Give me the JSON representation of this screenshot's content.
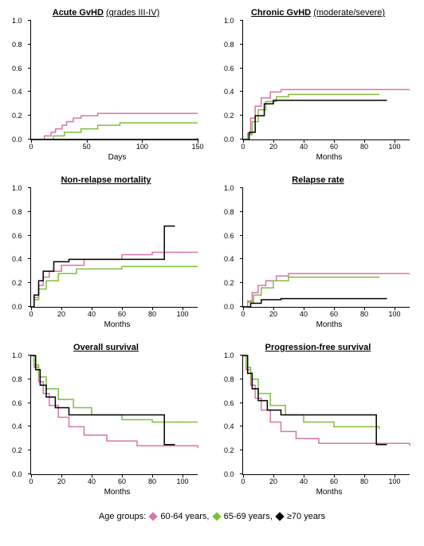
{
  "legend": {
    "prefix": "Age groups:",
    "items": [
      {
        "label": "60-64 years,",
        "color": "#d974a8"
      },
      {
        "label": "65-69 years,",
        "color": "#7fbf3f"
      },
      {
        "label": "≥70 years",
        "color": "#000000"
      }
    ]
  },
  "panels": [
    {
      "title_main": "Acute GvHD",
      "title_sub": "(grades III-IV)",
      "xlabel": "Days",
      "ylim": [
        0,
        1
      ],
      "ytick_step": 0.2,
      "xlim": [
        0,
        150
      ],
      "xtick_step": 50,
      "series": [
        {
          "color": "#d974a8",
          "pts": [
            [
              0,
              0
            ],
            [
              10,
              0
            ],
            [
              12,
              0.03
            ],
            [
              18,
              0.06
            ],
            [
              22,
              0.09
            ],
            [
              28,
              0.12
            ],
            [
              32,
              0.15
            ],
            [
              38,
              0.18
            ],
            [
              45,
              0.2
            ],
            [
              60,
              0.22
            ],
            [
              150,
              0.22
            ]
          ]
        },
        {
          "color": "#7fbf3f",
          "pts": [
            [
              0,
              0
            ],
            [
              15,
              0
            ],
            [
              20,
              0.03
            ],
            [
              30,
              0.06
            ],
            [
              45,
              0.09
            ],
            [
              60,
              0.12
            ],
            [
              80,
              0.14
            ],
            [
              150,
              0.14
            ]
          ]
        },
        {
          "color": "#000000",
          "pts": [
            [
              0,
              0
            ],
            [
              150,
              0.01
            ]
          ]
        }
      ]
    },
    {
      "title_main": "Chronic GvHD",
      "title_sub": "(moderate/severe)",
      "xlabel": "Months",
      "ylim": [
        0,
        1
      ],
      "ytick_step": 0.2,
      "xlim": [
        0,
        110
      ],
      "xtick_step": 20,
      "series": [
        {
          "color": "#d974a8",
          "pts": [
            [
              0,
              0
            ],
            [
              3,
              0.05
            ],
            [
              5,
              0.18
            ],
            [
              8,
              0.28
            ],
            [
              12,
              0.35
            ],
            [
              18,
              0.4
            ],
            [
              25,
              0.42
            ],
            [
              110,
              0.42
            ]
          ]
        },
        {
          "color": "#7fbf3f",
          "pts": [
            [
              0,
              0
            ],
            [
              3,
              0.04
            ],
            [
              6,
              0.15
            ],
            [
              10,
              0.25
            ],
            [
              15,
              0.32
            ],
            [
              22,
              0.36
            ],
            [
              30,
              0.38
            ],
            [
              90,
              0.38
            ]
          ]
        },
        {
          "color": "#000000",
          "pts": [
            [
              0,
              0
            ],
            [
              4,
              0.06
            ],
            [
              8,
              0.2
            ],
            [
              14,
              0.3
            ],
            [
              20,
              0.33
            ],
            [
              95,
              0.33
            ]
          ]
        }
      ]
    },
    {
      "title_main": "Non-relapse mortality",
      "title_sub": "",
      "xlabel": "Months",
      "ylim": [
        0,
        1
      ],
      "ytick_step": 0.2,
      "xlim": [
        0,
        110
      ],
      "xtick_step": 20,
      "series": [
        {
          "color": "#d974a8",
          "pts": [
            [
              0,
              0
            ],
            [
              2,
              0.08
            ],
            [
              5,
              0.18
            ],
            [
              8,
              0.25
            ],
            [
              12,
              0.3
            ],
            [
              20,
              0.35
            ],
            [
              35,
              0.4
            ],
            [
              60,
              0.44
            ],
            [
              80,
              0.46
            ],
            [
              110,
              0.46
            ]
          ]
        },
        {
          "color": "#7fbf3f",
          "pts": [
            [
              0,
              0
            ],
            [
              2,
              0.06
            ],
            [
              5,
              0.15
            ],
            [
              10,
              0.22
            ],
            [
              18,
              0.28
            ],
            [
              30,
              0.32
            ],
            [
              60,
              0.34
            ],
            [
              110,
              0.34
            ]
          ]
        },
        {
          "color": "#000000",
          "pts": [
            [
              0,
              0
            ],
            [
              2,
              0.1
            ],
            [
              5,
              0.22
            ],
            [
              8,
              0.3
            ],
            [
              15,
              0.38
            ],
            [
              25,
              0.4
            ],
            [
              50,
              0.4
            ],
            [
              85,
              0.4
            ],
            [
              88,
              0.68
            ],
            [
              95,
              0.68
            ]
          ]
        }
      ]
    },
    {
      "title_main": "Relapse rate",
      "title_sub": "",
      "xlabel": "Months",
      "ylim": [
        0,
        1
      ],
      "ytick_step": 0.2,
      "xlim": [
        0,
        110
      ],
      "xtick_step": 20,
      "series": [
        {
          "color": "#d974a8",
          "pts": [
            [
              0,
              0
            ],
            [
              3,
              0.05
            ],
            [
              6,
              0.12
            ],
            [
              10,
              0.18
            ],
            [
              15,
              0.22
            ],
            [
              22,
              0.26
            ],
            [
              30,
              0.28
            ],
            [
              110,
              0.28
            ]
          ]
        },
        {
          "color": "#7fbf3f",
          "pts": [
            [
              0,
              0
            ],
            [
              3,
              0.04
            ],
            [
              7,
              0.1
            ],
            [
              12,
              0.16
            ],
            [
              20,
              0.22
            ],
            [
              30,
              0.25
            ],
            [
              90,
              0.25
            ]
          ]
        },
        {
          "color": "#000000",
          "pts": [
            [
              0,
              0
            ],
            [
              5,
              0.03
            ],
            [
              12,
              0.06
            ],
            [
              25,
              0.07
            ],
            [
              95,
              0.07
            ]
          ]
        }
      ]
    },
    {
      "title_main": "Overall survival",
      "title_sub": "",
      "xlabel": "Months",
      "ylim": [
        0,
        1
      ],
      "ytick_step": 0.2,
      "xlim": [
        0,
        110
      ],
      "xtick_step": 20,
      "series": [
        {
          "color": "#d974a8",
          "pts": [
            [
              0,
              1
            ],
            [
              2,
              0.9
            ],
            [
              5,
              0.78
            ],
            [
              8,
              0.68
            ],
            [
              12,
              0.58
            ],
            [
              18,
              0.48
            ],
            [
              25,
              0.4
            ],
            [
              35,
              0.33
            ],
            [
              50,
              0.28
            ],
            [
              70,
              0.24
            ],
            [
              110,
              0.22
            ]
          ]
        },
        {
          "color": "#7fbf3f",
          "pts": [
            [
              0,
              1
            ],
            [
              2,
              0.92
            ],
            [
              5,
              0.82
            ],
            [
              10,
              0.72
            ],
            [
              18,
              0.63
            ],
            [
              28,
              0.56
            ],
            [
              40,
              0.5
            ],
            [
              60,
              0.46
            ],
            [
              80,
              0.44
            ],
            [
              110,
              0.44
            ]
          ]
        },
        {
          "color": "#000000",
          "pts": [
            [
              0,
              1
            ],
            [
              3,
              0.88
            ],
            [
              6,
              0.75
            ],
            [
              10,
              0.65
            ],
            [
              16,
              0.56
            ],
            [
              25,
              0.5
            ],
            [
              40,
              0.5
            ],
            [
              70,
              0.5
            ],
            [
              85,
              0.5
            ],
            [
              88,
              0.25
            ],
            [
              95,
              0.25
            ]
          ]
        }
      ]
    },
    {
      "title_main": "Progression-free survival",
      "title_sub": "",
      "xlabel": "Months",
      "ylim": [
        0,
        1
      ],
      "ytick_step": 0.2,
      "xlim": [
        0,
        110
      ],
      "xtick_step": 20,
      "series": [
        {
          "color": "#d974a8",
          "pts": [
            [
              0,
              1
            ],
            [
              2,
              0.88
            ],
            [
              5,
              0.75
            ],
            [
              8,
              0.64
            ],
            [
              12,
              0.54
            ],
            [
              18,
              0.44
            ],
            [
              25,
              0.36
            ],
            [
              35,
              0.3
            ],
            [
              50,
              0.26
            ],
            [
              110,
              0.24
            ]
          ]
        },
        {
          "color": "#7fbf3f",
          "pts": [
            [
              0,
              1
            ],
            [
              2,
              0.9
            ],
            [
              5,
              0.8
            ],
            [
              10,
              0.68
            ],
            [
              18,
              0.58
            ],
            [
              28,
              0.5
            ],
            [
              40,
              0.44
            ],
            [
              60,
              0.4
            ],
            [
              90,
              0.38
            ]
          ]
        },
        {
          "color": "#000000",
          "pts": [
            [
              0,
              1
            ],
            [
              3,
              0.85
            ],
            [
              6,
              0.72
            ],
            [
              10,
              0.62
            ],
            [
              16,
              0.54
            ],
            [
              25,
              0.5
            ],
            [
              50,
              0.5
            ],
            [
              85,
              0.5
            ],
            [
              88,
              0.25
            ],
            [
              95,
              0.25
            ]
          ]
        }
      ]
    }
  ]
}
